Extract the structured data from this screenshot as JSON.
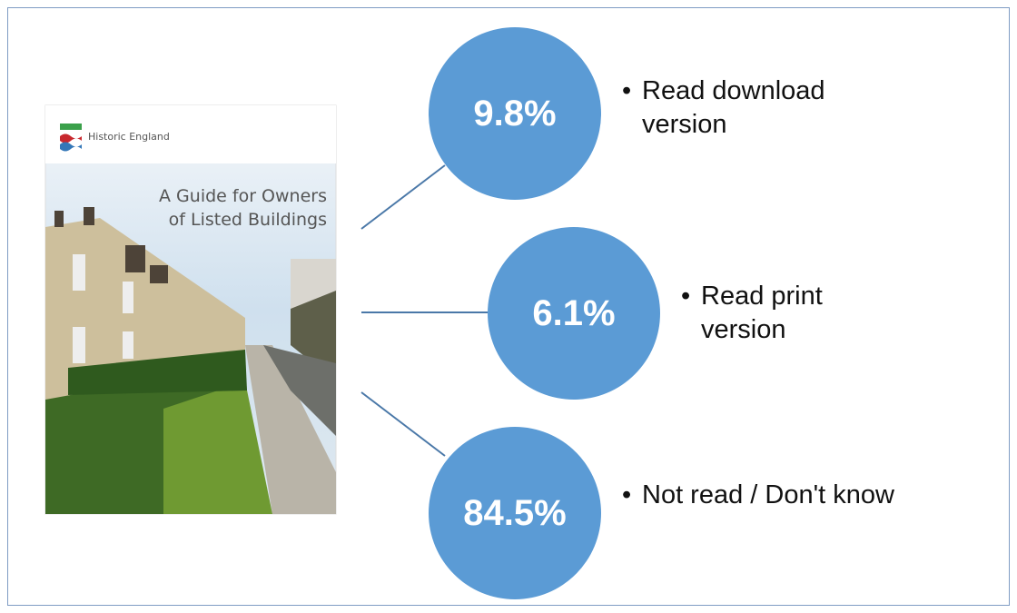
{
  "cover": {
    "publisher": "Historic England",
    "title_lines": [
      "A Guide for Owners",
      "of Listed Buildings"
    ]
  },
  "items": [
    {
      "percent": "9.8%",
      "label": "Read download version"
    },
    {
      "percent": "6.1%",
      "label": "Read print version"
    },
    {
      "percent": "84.5%",
      "label": "Not read / Don't know"
    }
  ]
}
